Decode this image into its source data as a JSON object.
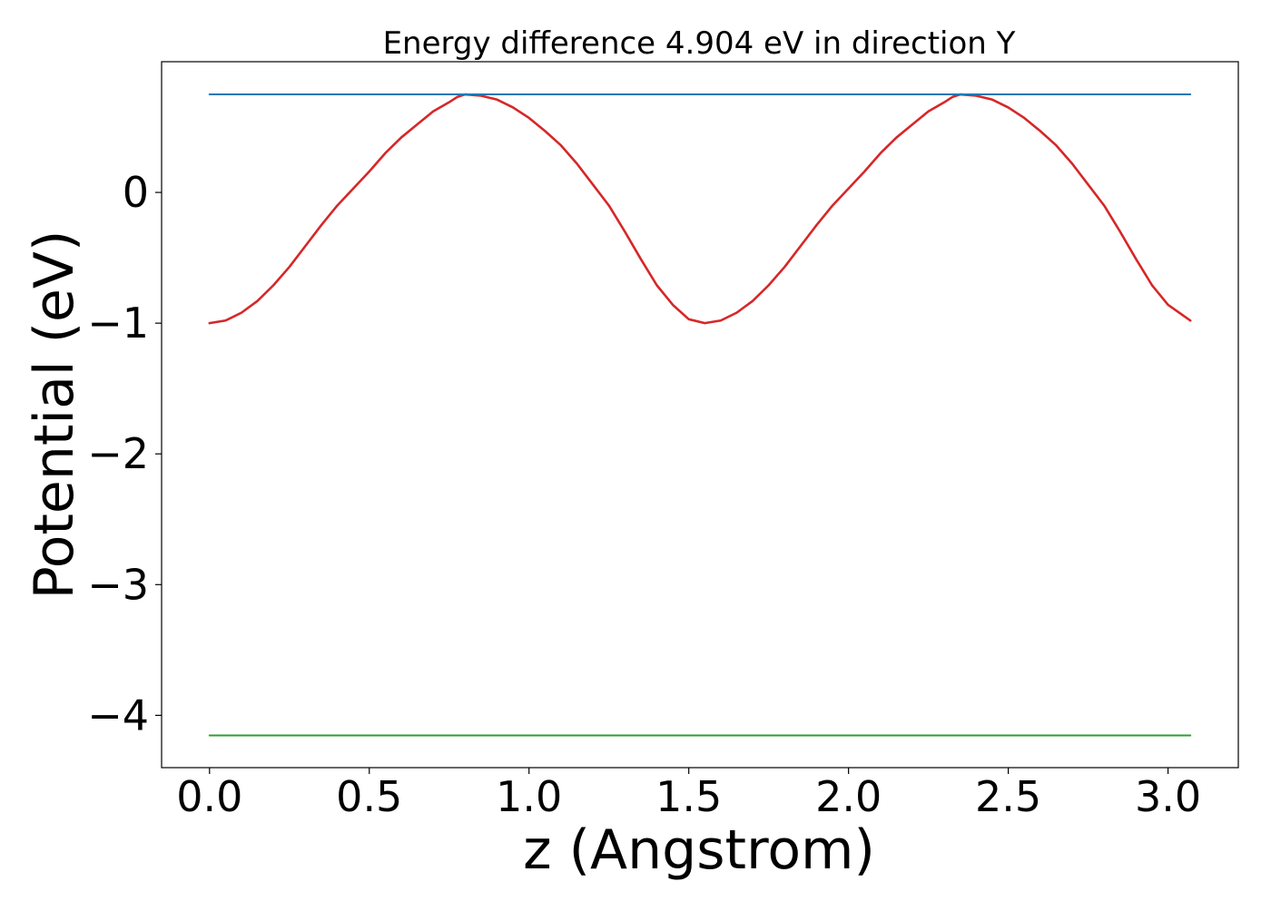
{
  "chart_data": {
    "type": "line",
    "title": "Energy difference 4.904 eV in direction Y",
    "xlabel": "z (Angstrom)",
    "ylabel": "Potential (eV)",
    "xlim": [
      -0.15,
      3.22
    ],
    "ylim": [
      -4.4,
      1.0
    ],
    "xticks": [
      0.0,
      0.5,
      1.0,
      1.5,
      2.0,
      2.5,
      3.0
    ],
    "xtick_labels": [
      "0.0",
      "0.5",
      "1.0",
      "1.5",
      "2.0",
      "2.5",
      "3.0"
    ],
    "yticks": [
      0,
      -1,
      -2,
      -3,
      -4
    ],
    "ytick_labels": [
      "0",
      "−1",
      "−2",
      "−3",
      "−4"
    ],
    "grid": false,
    "legend": "none",
    "series": [
      {
        "color": "#d62728",
        "x": [
          0.0,
          0.05,
          0.1,
          0.15,
          0.2,
          0.25,
          0.3,
          0.35,
          0.4,
          0.45,
          0.5,
          0.55,
          0.6,
          0.65,
          0.7,
          0.75,
          0.775,
          0.8,
          0.85,
          0.9,
          0.95,
          1.0,
          1.05,
          1.1,
          1.15,
          1.2,
          1.25,
          1.3,
          1.35,
          1.4,
          1.45,
          1.5,
          1.55,
          1.6,
          1.65,
          1.7,
          1.75,
          1.8,
          1.85,
          1.9,
          1.95,
          2.0,
          2.05,
          2.1,
          2.15,
          2.2,
          2.25,
          2.3,
          2.325,
          2.35,
          2.4,
          2.45,
          2.5,
          2.55,
          2.6,
          2.65,
          2.7,
          2.75,
          2.8,
          2.85,
          2.9,
          2.95,
          3.0,
          3.07
        ],
        "y": [
          -1.0,
          -0.98,
          -0.92,
          -0.83,
          -0.71,
          -0.57,
          -0.41,
          -0.25,
          -0.1,
          0.03,
          0.16,
          0.3,
          0.42,
          0.52,
          0.62,
          0.69,
          0.73,
          0.75,
          0.74,
          0.71,
          0.65,
          0.57,
          0.47,
          0.36,
          0.22,
          0.06,
          -0.1,
          -0.3,
          -0.51,
          -0.71,
          -0.86,
          -0.97,
          -1.0,
          -0.98,
          -0.92,
          -0.83,
          -0.71,
          -0.57,
          -0.41,
          -0.25,
          -0.1,
          0.03,
          0.16,
          0.3,
          0.42,
          0.52,
          0.62,
          0.69,
          0.73,
          0.75,
          0.74,
          0.71,
          0.65,
          0.57,
          0.47,
          0.36,
          0.22,
          0.06,
          -0.1,
          -0.3,
          -0.51,
          -0.71,
          -0.86,
          -0.98
        ]
      },
      {
        "color": "#1f77b4",
        "x": [
          0.0,
          3.07
        ],
        "y": [
          0.75,
          0.75
        ]
      },
      {
        "color": "#2ca02c",
        "x": [
          0.0,
          3.07
        ],
        "y": [
          -4.154,
          -4.154
        ]
      }
    ]
  }
}
